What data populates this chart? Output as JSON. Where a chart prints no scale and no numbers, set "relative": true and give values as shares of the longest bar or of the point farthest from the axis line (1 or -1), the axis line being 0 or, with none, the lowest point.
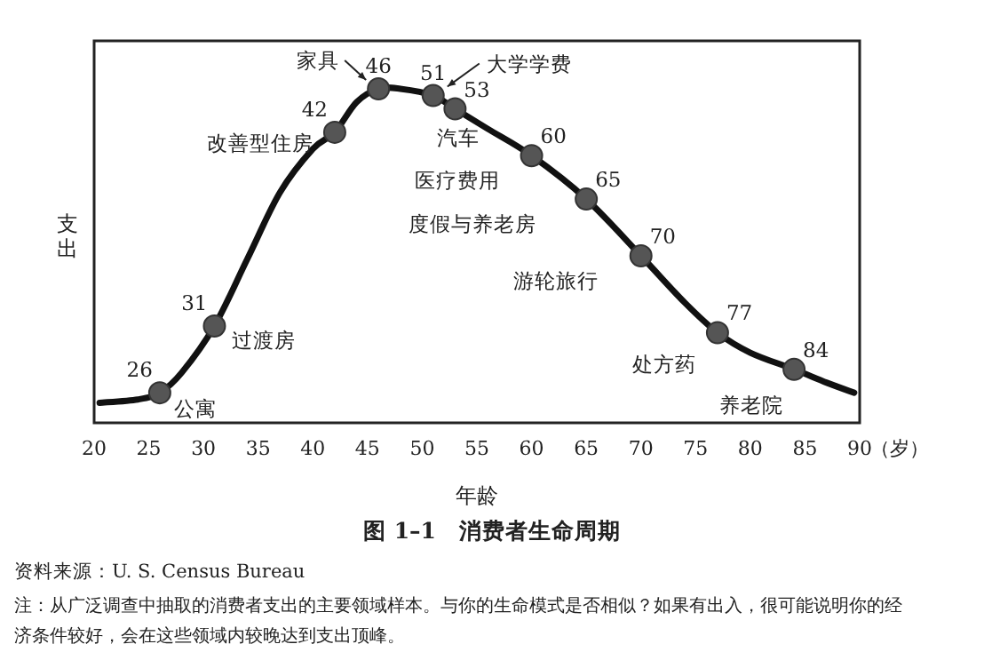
{
  "chart_data": {
    "type": "line",
    "relative": true,
    "title": "图 1–1　消费者生命周期",
    "xlabel": "年龄",
    "ylabel": "支出",
    "xlim": [
      20,
      90
    ],
    "xticks": [
      20,
      25,
      30,
      35,
      40,
      45,
      50,
      55,
      60,
      65,
      70,
      75,
      80,
      85,
      90
    ],
    "grid": false,
    "series": [
      {
        "color": "#111111",
        "line_style": "solid",
        "x": [
          20.5,
          24,
          26,
          28,
          31,
          34,
          37,
          40,
          42,
          44,
          46,
          48,
          51,
          53,
          56,
          60,
          65,
          70,
          74,
          77,
          80,
          84,
          87,
          89.5
        ],
        "values": [
          0.06,
          0.07,
          0.09,
          0.15,
          0.29,
          0.49,
          0.69,
          0.82,
          0.87,
          0.96,
          1.0,
          1.0,
          0.98,
          0.94,
          0.88,
          0.8,
          0.67,
          0.5,
          0.36,
          0.27,
          0.21,
          0.16,
          0.12,
          0.09
        ]
      },
      {
        "type": "scatter",
        "color": "#555555",
        "marker": "circle",
        "x": [
          26,
          31,
          42,
          46,
          51,
          53,
          60,
          65,
          70,
          77,
          84
        ],
        "values": [
          0.09,
          0.29,
          0.87,
          1.0,
          0.98,
          0.94,
          0.8,
          0.67,
          0.5,
          0.27,
          0.16
        ]
      }
    ],
    "annotations": [
      {
        "text": "公寓",
        "x": 26,
        "y": 0.09
      },
      {
        "text": "过渡房",
        "x": 31,
        "y": 0.29
      },
      {
        "text": "改善型住房",
        "x": 42,
        "y": 0.87
      },
      {
        "text": "家具",
        "x": 46,
        "y": 1.0
      },
      {
        "text": "大学学费",
        "x": 51,
        "y": 0.98
      },
      {
        "text": "汽车",
        "x": 53,
        "y": 0.94
      },
      {
        "text": "医疗费用",
        "x": 60,
        "y": 0.8
      },
      {
        "text": "度假与养老房",
        "x": 65,
        "y": 0.67
      },
      {
        "text": "游轮旅行",
        "x": 70,
        "y": 0.5
      },
      {
        "text": "处方药",
        "x": 77,
        "y": 0.27
      },
      {
        "text": "养老院",
        "x": 84,
        "y": 0.16
      },
      {
        "text": "26",
        "x": 26,
        "y": 0.09
      },
      {
        "text": "31",
        "x": 31,
        "y": 0.29
      },
      {
        "text": "42",
        "x": 42,
        "y": 0.87
      },
      {
        "text": "46",
        "x": 46,
        "y": 1.0
      },
      {
        "text": "51",
        "x": 51,
        "y": 0.98
      },
      {
        "text": "53",
        "x": 53,
        "y": 0.94
      },
      {
        "text": "60",
        "x": 60,
        "y": 0.8
      },
      {
        "text": "65",
        "x": 65,
        "y": 0.67
      },
      {
        "text": "70",
        "x": 70,
        "y": 0.5
      },
      {
        "text": "77",
        "x": 77,
        "y": 0.27
      },
      {
        "text": "84",
        "x": 84,
        "y": 0.16
      },
      "（岁）",
      "资料来源：U. S. Census Bureau",
      "注：从广泛调查中抽取的消费者支出的主要领域样本。与你的生命模式是否相似？如果有出入，很可能说明你的经济条件较好，会在这些领域内较晚达到支出顶峰。"
    ]
  }
}
